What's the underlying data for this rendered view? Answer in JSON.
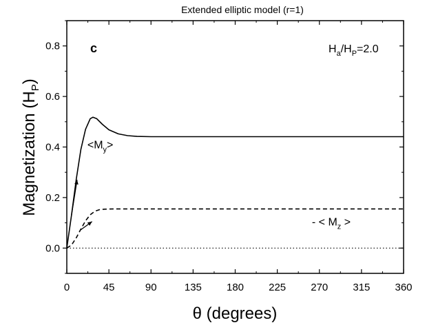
{
  "chart_data": {
    "type": "line",
    "title": "Extended elliptic model (r=1)",
    "panel_label": "c",
    "parameter_label": {
      "main": "H",
      "sub1": "a",
      "slash": "/H",
      "sub2": "P",
      "tail": "=2.0"
    },
    "xlabel": "θ (degrees)",
    "ylabel": {
      "main": "Magnetization (H",
      "sub": "P",
      "close": ")"
    },
    "xlim": [
      0,
      360
    ],
    "ylim": [
      -0.1,
      0.9
    ],
    "x_ticks": [
      0,
      45,
      90,
      135,
      180,
      225,
      270,
      315,
      360
    ],
    "y_ticks": [
      0.0,
      0.2,
      0.4,
      0.6,
      0.8
    ],
    "x_tick_labels": [
      "0",
      "45",
      "90",
      "135",
      "180",
      "225",
      "270",
      "315",
      "360"
    ],
    "y_tick_labels": [
      "0.0",
      "0.2",
      "0.4",
      "0.6",
      "0.8"
    ],
    "series": [
      {
        "style": "solid",
        "x": [
          0,
          5,
          10,
          15,
          20,
          25,
          28,
          32,
          38,
          45,
          55,
          65,
          75,
          90,
          120,
          180,
          240,
          300,
          360
        ],
        "y": [
          0.0,
          0.13,
          0.27,
          0.39,
          0.47,
          0.512,
          0.518,
          0.512,
          0.49,
          0.468,
          0.452,
          0.445,
          0.442,
          0.441,
          0.441,
          0.441,
          0.441,
          0.441,
          0.441
        ]
      },
      {
        "style": "dashed",
        "x": [
          0,
          5,
          10,
          15,
          20,
          25,
          30,
          35,
          40,
          50,
          60,
          90,
          180,
          270,
          360
        ],
        "y": [
          0.0,
          0.012,
          0.04,
          0.075,
          0.108,
          0.132,
          0.146,
          0.152,
          0.154,
          0.155,
          0.155,
          0.155,
          0.155,
          0.155,
          0.155
        ]
      },
      {
        "style": "dotted",
        "x": [
          0,
          360
        ],
        "y": [
          0.0,
          0.0
        ]
      }
    ],
    "annotations": [
      {
        "main": "<M",
        "sub": "y",
        "tail": ">",
        "x": 22,
        "y": 0.395
      },
      {
        "main": "- < M",
        "sub": "z",
        "tail": " >",
        "x": 262,
        "y": 0.09
      }
    ],
    "arrows": [
      {
        "from": [
          5,
          0.13
        ],
        "to": [
          11,
          0.27
        ]
      },
      {
        "from": [
          14,
          0.07
        ],
        "to": [
          27,
          0.105
        ]
      }
    ]
  }
}
